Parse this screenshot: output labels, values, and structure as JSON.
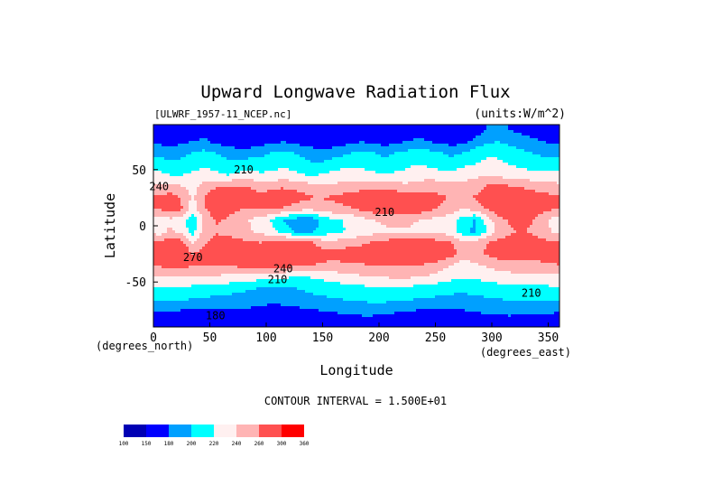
{
  "chart_data": {
    "type": "heatmap",
    "title": "Upward Longwave Radiation Flux",
    "dataset_label": "[ULWRF_1957-11_NCEP.nc]",
    "units_label": "(units:W/m^2)",
    "xlabel": "Longitude",
    "ylabel": "Latitude",
    "x_unit_label": "(degrees_east)",
    "y_unit_label": "(degrees_north)",
    "xlim": [
      0,
      360
    ],
    "ylim": [
      -90,
      90
    ],
    "x_ticks": [
      0,
      50,
      100,
      150,
      200,
      250,
      300,
      350
    ],
    "y_ticks": [
      -50,
      0,
      50
    ],
    "contour_interval_text": "CONTOUR INTERVAL = 1.500E+01",
    "colorbar": {
      "levels": [
        100,
        150,
        180,
        200,
        220,
        240,
        260,
        300,
        360
      ],
      "colors": [
        "#0000b4",
        "#0000ff",
        "#00a0ff",
        "#00ffff",
        "#fff0f0",
        "#ffb4b4",
        "#ff5050",
        "#ff0000"
      ]
    },
    "contour_labels": [
      {
        "text": "180",
        "lon": 55,
        "lat": -80
      },
      {
        "text": "210",
        "lon": 110,
        "lat": -48
      },
      {
        "text": "240",
        "lon": 115,
        "lat": -38
      },
      {
        "text": "270",
        "lon": 35,
        "lat": -28
      },
      {
        "text": "210",
        "lon": 335,
        "lat": -60
      },
      {
        "text": "210",
        "lon": 80,
        "lat": 50
      },
      {
        "text": "240",
        "lon": 5,
        "lat": 35
      },
      {
        "text": "210",
        "lon": 205,
        "lat": 12
      }
    ],
    "field": {
      "lon_step": 10,
      "lat_step": 10,
      "lats": [
        85,
        75,
        65,
        55,
        45,
        35,
        25,
        15,
        5,
        -5,
        -15,
        -25,
        -35,
        -45,
        -55,
        -65,
        -75,
        -85
      ],
      "values": [
        [
          160,
          155,
          160,
          165,
          170,
          160,
          155,
          150,
          150,
          155,
          160,
          165,
          160,
          155,
          150,
          150,
          155,
          160,
          165,
          160,
          155,
          160,
          165,
          170,
          165,
          160,
          155,
          160,
          170,
          180,
          185,
          180,
          175,
          170,
          165,
          160
        ],
        [
          175,
          170,
          175,
          180,
          185,
          175,
          170,
          165,
          165,
          170,
          175,
          180,
          175,
          170,
          165,
          165,
          170,
          175,
          180,
          175,
          170,
          175,
          180,
          185,
          180,
          175,
          170,
          175,
          185,
          195,
          200,
          195,
          190,
          185,
          180,
          175
        ],
        [
          195,
          190,
          195,
          200,
          205,
          200,
          195,
          190,
          190,
          195,
          200,
          205,
          200,
          195,
          190,
          190,
          195,
          200,
          205,
          200,
          195,
          200,
          205,
          210,
          205,
          200,
          195,
          200,
          210,
          215,
          215,
          210,
          205,
          200,
          195,
          195
        ],
        [
          210,
          205,
          205,
          210,
          215,
          210,
          205,
          205,
          210,
          205,
          210,
          215,
          210,
          205,
          200,
          205,
          210,
          215,
          215,
          210,
          205,
          210,
          215,
          220,
          215,
          210,
          210,
          215,
          220,
          225,
          225,
          220,
          215,
          210,
          210,
          210
        ],
        [
          225,
          220,
          220,
          225,
          230,
          225,
          220,
          225,
          230,
          225,
          225,
          230,
          225,
          220,
          220,
          225,
          230,
          230,
          228,
          225,
          222,
          225,
          228,
          232,
          230,
          228,
          228,
          232,
          236,
          238,
          235,
          232,
          230,
          228,
          225,
          225
        ],
        [
          245,
          248,
          240,
          235,
          248,
          258,
          262,
          262,
          258,
          252,
          255,
          258,
          255,
          250,
          245,
          242,
          245,
          248,
          252,
          255,
          252,
          248,
          245,
          248,
          255,
          252,
          248,
          245,
          252,
          262,
          265,
          262,
          258,
          255,
          250,
          248
        ],
        [
          262,
          268,
          258,
          235,
          262,
          275,
          282,
          278,
          272,
          268,
          270,
          272,
          270,
          265,
          260,
          262,
          266,
          270,
          274,
          276,
          278,
          278,
          276,
          272,
          266,
          262,
          260,
          258,
          262,
          268,
          272,
          275,
          275,
          272,
          268,
          265
        ],
        [
          262,
          272,
          262,
          230,
          258,
          272,
          270,
          262,
          258,
          262,
          264,
          258,
          252,
          242,
          246,
          252,
          255,
          258,
          265,
          270,
          272,
          276,
          278,
          272,
          264,
          258,
          250,
          238,
          248,
          262,
          270,
          272,
          272,
          270,
          266,
          262
        ],
        [
          225,
          235,
          225,
          205,
          242,
          262,
          258,
          248,
          240,
          230,
          218,
          200,
          190,
          182,
          196,
          212,
          218,
          225,
          232,
          240,
          244,
          246,
          244,
          240,
          236,
          232,
          228,
          210,
          198,
          225,
          252,
          262,
          266,
          262,
          248,
          232
        ],
        [
          230,
          245,
          232,
          212,
          248,
          258,
          256,
          248,
          242,
          236,
          226,
          210,
          198,
          192,
          202,
          212,
          218,
          222,
          228,
          232,
          236,
          238,
          238,
          236,
          234,
          232,
          230,
          205,
          196,
          218,
          246,
          256,
          262,
          258,
          248,
          238
        ],
        [
          262,
          275,
          268,
          238,
          256,
          266,
          270,
          266,
          262,
          260,
          266,
          272,
          272,
          268,
          255,
          246,
          248,
          252,
          256,
          262,
          266,
          270,
          274,
          276,
          272,
          266,
          260,
          242,
          248,
          258,
          266,
          268,
          270,
          268,
          266,
          264
        ],
        [
          272,
          282,
          280,
          260,
          270,
          276,
          280,
          282,
          286,
          290,
          296,
          298,
          292,
          284,
          272,
          268,
          270,
          272,
          275,
          279,
          283,
          286,
          288,
          286,
          282,
          276,
          268,
          248,
          255,
          262,
          270,
          272,
          274,
          272,
          272,
          272
        ],
        [
          262,
          268,
          268,
          262,
          262,
          262,
          262,
          265,
          268,
          270,
          272,
          270,
          266,
          262,
          258,
          256,
          255,
          256,
          258,
          260,
          262,
          262,
          262,
          260,
          256,
          248,
          238,
          232,
          236,
          242,
          248,
          250,
          252,
          252,
          255,
          258
        ],
        [
          238,
          242,
          242,
          240,
          238,
          238,
          236,
          234,
          232,
          230,
          226,
          224,
          222,
          220,
          224,
          228,
          232,
          236,
          238,
          240,
          242,
          244,
          244,
          242,
          238,
          232,
          226,
          222,
          224,
          228,
          232,
          234,
          236,
          236,
          236,
          236
        ],
        [
          218,
          220,
          218,
          216,
          214,
          212,
          210,
          208,
          204,
          200,
          198,
          198,
          200,
          204,
          208,
          210,
          212,
          214,
          216,
          218,
          220,
          220,
          218,
          214,
          212,
          210,
          208,
          206,
          208,
          210,
          212,
          214,
          216,
          216,
          216,
          218
        ],
        [
          205,
          206,
          204,
          200,
          198,
          196,
          194,
          192,
          188,
          186,
          185,
          186,
          188,
          192,
          196,
          198,
          200,
          202,
          204,
          206,
          206,
          204,
          202,
          200,
          198,
          196,
          194,
          194,
          196,
          198,
          200,
          202,
          204,
          204,
          204,
          205
        ],
        [
          185,
          182,
          180,
          178,
          176,
          176,
          178,
          180,
          178,
          176,
          175,
          175,
          176,
          178,
          180,
          182,
          184,
          186,
          188,
          188,
          186,
          184,
          182,
          180,
          178,
          178,
          178,
          180,
          182,
          184,
          186,
          188,
          188,
          188,
          186,
          185
        ],
        [
          165,
          162,
          160,
          158,
          158,
          160,
          162,
          164,
          164,
          164,
          162,
          162,
          163,
          164,
          166,
          168,
          170,
          172,
          172,
          172,
          170,
          168,
          166,
          164,
          164,
          164,
          166,
          168,
          170,
          172,
          172,
          172,
          170,
          168,
          166,
          165
        ]
      ]
    }
  }
}
